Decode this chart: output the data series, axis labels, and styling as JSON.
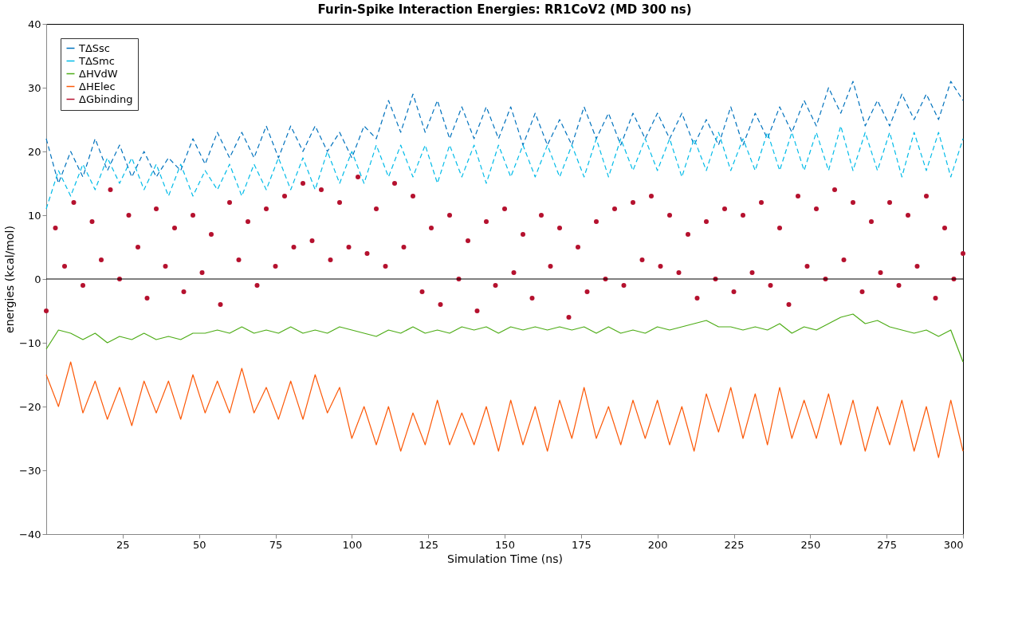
{
  "chart_data": {
    "type": "line",
    "title": "Furin-Spike Interaction Energies: RR1CoV2 (MD 300 ns)",
    "xlabel": "Simulation Time (ns)",
    "ylabel": "energies (kcal/mol)",
    "xlim": [
      0,
      300
    ],
    "xticks": [
      25,
      50,
      75,
      100,
      125,
      150,
      175,
      200,
      225,
      250,
      275,
      300
    ],
    "ylim": [
      -40,
      40
    ],
    "yticks": [
      -40,
      -30,
      -20,
      -10,
      0,
      10,
      20,
      30,
      40
    ],
    "grid": false,
    "legend": "top left",
    "ref_lines": [
      {
        "axis": "y",
        "value": 0,
        "color": "#000000"
      }
    ],
    "series": [
      {
        "name": "TΔSsc",
        "line_style": "dashed",
        "color": "#0072bd",
        "x": [
          0,
          4,
          8,
          12,
          16,
          20,
          24,
          28,
          32,
          36,
          40,
          44,
          48,
          52,
          56,
          60,
          64,
          68,
          72,
          76,
          80,
          84,
          88,
          92,
          96,
          100,
          104,
          108,
          112,
          116,
          120,
          124,
          128,
          132,
          136,
          140,
          144,
          148,
          152,
          156,
          160,
          164,
          168,
          172,
          176,
          180,
          184,
          188,
          192,
          196,
          200,
          204,
          208,
          212,
          216,
          220,
          224,
          228,
          232,
          236,
          240,
          244,
          248,
          252,
          256,
          260,
          264,
          268,
          272,
          276,
          280,
          284,
          288,
          292,
          296,
          300
        ],
        "values": [
          22,
          15,
          20,
          16,
          22,
          17,
          21,
          16,
          20,
          16,
          19,
          17,
          22,
          18,
          23,
          19,
          23,
          19,
          24,
          19,
          24,
          20,
          24,
          20,
          23,
          19,
          24,
          22,
          28,
          23,
          29,
          23,
          28,
          22,
          27,
          22,
          27,
          22,
          27,
          21,
          26,
          21,
          25,
          21,
          27,
          22,
          26,
          21,
          26,
          22,
          26,
          22,
          26,
          21,
          25,
          21,
          27,
          21,
          26,
          22,
          27,
          23,
          28,
          24,
          30,
          26,
          31,
          24,
          28,
          24,
          29,
          25,
          29,
          25,
          31,
          28
        ]
      },
      {
        "name": "TΔSmc",
        "line_style": "dashed",
        "color": "#00bbe8",
        "x": [
          0,
          4,
          8,
          12,
          16,
          20,
          24,
          28,
          32,
          36,
          40,
          44,
          48,
          52,
          56,
          60,
          64,
          68,
          72,
          76,
          80,
          84,
          88,
          92,
          96,
          100,
          104,
          108,
          112,
          116,
          120,
          124,
          128,
          132,
          136,
          140,
          144,
          148,
          152,
          156,
          160,
          164,
          168,
          172,
          176,
          180,
          184,
          188,
          192,
          196,
          200,
          204,
          208,
          212,
          216,
          220,
          224,
          228,
          232,
          236,
          240,
          244,
          248,
          252,
          256,
          260,
          264,
          268,
          272,
          276,
          280,
          284,
          288,
          292,
          296,
          300
        ],
        "values": [
          11,
          17,
          13,
          18,
          14,
          19,
          15,
          19,
          14,
          18,
          13,
          18,
          13,
          17,
          14,
          18,
          13,
          18,
          14,
          19,
          14,
          19,
          14,
          20,
          15,
          20,
          15,
          21,
          16,
          21,
          16,
          21,
          15,
          21,
          16,
          21,
          15,
          21,
          16,
          21,
          16,
          21,
          16,
          21,
          16,
          22,
          16,
          22,
          17,
          22,
          17,
          22,
          16,
          22,
          17,
          23,
          17,
          22,
          17,
          23,
          17,
          23,
          17,
          23,
          17,
          24,
          17,
          23,
          17,
          23,
          16,
          23,
          17,
          23,
          16,
          22
        ]
      },
      {
        "name": "ΔHVdW",
        "line_style": "solid",
        "color": "#4dac16",
        "x": [
          0,
          4,
          8,
          12,
          16,
          20,
          24,
          28,
          32,
          36,
          40,
          44,
          48,
          52,
          56,
          60,
          64,
          68,
          72,
          76,
          80,
          84,
          88,
          92,
          96,
          100,
          104,
          108,
          112,
          116,
          120,
          124,
          128,
          132,
          136,
          140,
          144,
          148,
          152,
          156,
          160,
          164,
          168,
          172,
          176,
          180,
          184,
          188,
          192,
          196,
          200,
          204,
          208,
          212,
          216,
          220,
          224,
          228,
          232,
          236,
          240,
          244,
          248,
          252,
          256,
          260,
          264,
          268,
          272,
          276,
          280,
          284,
          288,
          292,
          296,
          300
        ],
        "values": [
          -11,
          -8,
          -8.5,
          -9.5,
          -8.5,
          -10,
          -9,
          -9.5,
          -8.5,
          -9.5,
          -9,
          -9.5,
          -8.5,
          -8.5,
          -8,
          -8.5,
          -7.5,
          -8.5,
          -8,
          -8.5,
          -7.5,
          -8.5,
          -8,
          -8.5,
          -7.5,
          -8,
          -8.5,
          -9,
          -8,
          -8.5,
          -7.5,
          -8.5,
          -8,
          -8.5,
          -7.5,
          -8,
          -7.5,
          -8.5,
          -7.5,
          -8,
          -7.5,
          -8,
          -7.5,
          -8,
          -7.5,
          -8.5,
          -7.5,
          -8.5,
          -8,
          -8.5,
          -7.5,
          -8,
          -7.5,
          -7,
          -6.5,
          -7.5,
          -7.5,
          -8,
          -7.5,
          -8,
          -7,
          -8.5,
          -7.5,
          -8,
          -7,
          -6,
          -5.5,
          -7,
          -6.5,
          -7.5,
          -8,
          -8.5,
          -8,
          -9,
          -8,
          -13
        ]
      },
      {
        "name": "ΔHElec",
        "line_style": "solid",
        "color": "#fc5a0a",
        "x": [
          0,
          4,
          8,
          12,
          16,
          20,
          24,
          28,
          32,
          36,
          40,
          44,
          48,
          52,
          56,
          60,
          64,
          68,
          72,
          76,
          80,
          84,
          88,
          92,
          96,
          100,
          104,
          108,
          112,
          116,
          120,
          124,
          128,
          132,
          136,
          140,
          144,
          148,
          152,
          156,
          160,
          164,
          168,
          172,
          176,
          180,
          184,
          188,
          192,
          196,
          200,
          204,
          208,
          212,
          216,
          220,
          224,
          228,
          232,
          236,
          240,
          244,
          248,
          252,
          256,
          260,
          264,
          268,
          272,
          276,
          280,
          284,
          288,
          292,
          296,
          300
        ],
        "values": [
          -15,
          -20,
          -13,
          -21,
          -16,
          -22,
          -17,
          -23,
          -16,
          -21,
          -16,
          -22,
          -15,
          -21,
          -16,
          -21,
          -14,
          -21,
          -17,
          -22,
          -16,
          -22,
          -15,
          -21,
          -17,
          -25,
          -20,
          -26,
          -20,
          -27,
          -21,
          -26,
          -19,
          -26,
          -21,
          -26,
          -20,
          -27,
          -19,
          -26,
          -20,
          -27,
          -19,
          -25,
          -17,
          -25,
          -20,
          -26,
          -19,
          -25,
          -19,
          -26,
          -20,
          -27,
          -18,
          -24,
          -17,
          -25,
          -18,
          -26,
          -17,
          -25,
          -19,
          -25,
          -18,
          -26,
          -19,
          -27,
          -20,
          -26,
          -19,
          -27,
          -20,
          -28,
          -19,
          -27
        ]
      },
      {
        "name": "ΔGbinding",
        "type": "scatter",
        "marker": "circle",
        "color": "#b5112e",
        "x": [
          0,
          3,
          6,
          9,
          12,
          15,
          18,
          21,
          24,
          27,
          30,
          33,
          36,
          39,
          42,
          45,
          48,
          51,
          54,
          57,
          60,
          63,
          66,
          69,
          72,
          75,
          78,
          81,
          84,
          87,
          90,
          93,
          96,
          99,
          102,
          105,
          108,
          111,
          114,
          117,
          120,
          123,
          126,
          129,
          132,
          135,
          138,
          141,
          144,
          147,
          150,
          153,
          156,
          159,
          162,
          165,
          168,
          171,
          174,
          177,
          180,
          183,
          186,
          189,
          192,
          195,
          198,
          201,
          204,
          207,
          210,
          213,
          216,
          219,
          222,
          225,
          228,
          231,
          234,
          237,
          240,
          243,
          246,
          249,
          252,
          255,
          258,
          261,
          264,
          267,
          270,
          273,
          276,
          279,
          282,
          285,
          288,
          291,
          294,
          297,
          300
        ],
        "values": [
          -5,
          8,
          2,
          12,
          -1,
          9,
          3,
          14,
          0,
          10,
          5,
          -3,
          11,
          2,
          8,
          -2,
          10,
          1,
          7,
          -4,
          12,
          3,
          9,
          -1,
          11,
          2,
          13,
          5,
          15,
          6,
          14,
          3,
          12,
          5,
          16,
          4,
          11,
          2,
          15,
          5,
          13,
          -2,
          8,
          -4,
          10,
          0,
          6,
          -5,
          9,
          -1,
          11,
          1,
          7,
          -3,
          10,
          2,
          8,
          -6,
          5,
          -2,
          9,
          0,
          11,
          -1,
          12,
          3,
          13,
          2,
          10,
          1,
          7,
          -3,
          9,
          0,
          11,
          -2,
          10,
          1,
          12,
          -1,
          8,
          -4,
          13,
          2,
          11,
          0,
          14,
          3,
          12,
          -2,
          9,
          1,
          12,
          -1,
          10,
          2,
          13,
          -3,
          8,
          0,
          4
        ]
      }
    ]
  }
}
